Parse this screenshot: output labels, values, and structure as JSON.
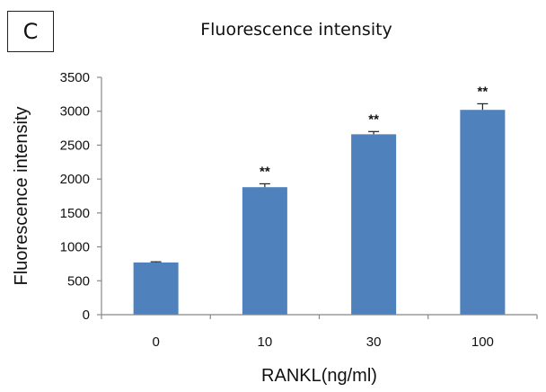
{
  "panel_label": "C",
  "chart_data": {
    "type": "bar",
    "title": "Fluorescence intensity",
    "xlabel": "RANKL(ng/ml)",
    "ylabel": "Fluorescence intensity",
    "categories": [
      "0",
      "10",
      "30",
      "100"
    ],
    "values": [
      770,
      1880,
      2660,
      3020
    ],
    "errors": [
      10,
      50,
      40,
      90
    ],
    "significance": [
      "",
      "**",
      "**",
      "**"
    ],
    "ylim": [
      0,
      3500
    ],
    "yticks": [
      0,
      500,
      1000,
      1500,
      2000,
      2500,
      3000,
      3500
    ],
    "grid": false,
    "bar_color": "#4f81bd"
  }
}
